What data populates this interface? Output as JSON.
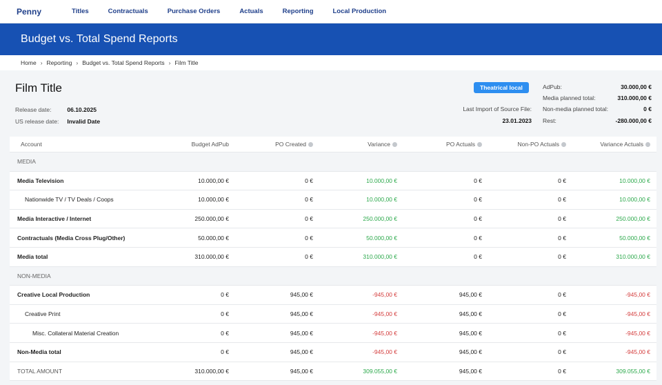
{
  "nav": {
    "brand": "Penny",
    "links": [
      "Titles",
      "Contractuals",
      "Purchase Orders",
      "Actuals",
      "Reporting",
      "Local Production"
    ]
  },
  "banner": {
    "title": "Budget vs. Total Spend Reports"
  },
  "breadcrumb": [
    "Home",
    "Reporting",
    "Budget vs. Total Spend Reports",
    "Film Title"
  ],
  "film": {
    "title": "Film Title",
    "release_label": "Release date:",
    "release_value": "06.10.2025",
    "us_release_label": "US release date:",
    "us_release_value": "Invalid Date",
    "badge": "Theatrical local",
    "last_import_label": "Last Import of Source File:",
    "last_import_value": "23.01.2023"
  },
  "summary": [
    {
      "label": "AdPub:",
      "value": "30.000,00 €"
    },
    {
      "label": "Media planned total:",
      "value": "310.000,00 €"
    },
    {
      "label": "Non-media planned total:",
      "value": "0 €"
    },
    {
      "label": "Rest:",
      "value": "-280.000,00 €"
    }
  ],
  "table": {
    "headers": [
      "Account",
      "Budget AdPub",
      "PO Created",
      "Variance",
      "PO Actuals",
      "Non-PO Actuals",
      "Variance Actuals"
    ],
    "rows": [
      {
        "kind": "section",
        "account": "MEDIA"
      },
      {
        "kind": "data",
        "bold": true,
        "indent": 0,
        "cells": [
          "Media Television",
          "10.000,00 €",
          "0 €",
          "10.000,00 €",
          "0 €",
          "0 €",
          "10.000,00 €"
        ],
        "var": "pos"
      },
      {
        "kind": "data",
        "bold": false,
        "indent": 1,
        "cells": [
          "Nationwide TV / TV Deals / Coops",
          "10.000,00 €",
          "0 €",
          "10.000,00 €",
          "0 €",
          "0 €",
          "10.000,00 €"
        ],
        "var": "pos"
      },
      {
        "kind": "data",
        "bold": true,
        "indent": 0,
        "cells": [
          "Media Interactive / Internet",
          "250.000,00 €",
          "0 €",
          "250.000,00 €",
          "0 €",
          "0 €",
          "250.000,00 €"
        ],
        "var": "pos"
      },
      {
        "kind": "data",
        "bold": true,
        "indent": 0,
        "cells": [
          "Contractuals (Media Cross Plug/Other)",
          "50.000,00 €",
          "0 €",
          "50.000,00 €",
          "0 €",
          "0 €",
          "50.000,00 €"
        ],
        "var": "pos"
      },
      {
        "kind": "data",
        "bold": true,
        "indent": 0,
        "cells": [
          "Media total",
          "310.000,00 €",
          "0 €",
          "310.000,00 €",
          "0 €",
          "0 €",
          "310.000,00 €"
        ],
        "var": "pos"
      },
      {
        "kind": "section",
        "account": "NON-MEDIA"
      },
      {
        "kind": "data",
        "bold": true,
        "indent": 0,
        "cells": [
          "Creative Local Production",
          "0 €",
          "945,00 €",
          "-945,00 €",
          "945,00 €",
          "0 €",
          "-945,00 €"
        ],
        "var": "neg"
      },
      {
        "kind": "data",
        "bold": false,
        "indent": 1,
        "cells": [
          "Creative Print",
          "0 €",
          "945,00 €",
          "-945,00 €",
          "945,00 €",
          "0 €",
          "-945,00 €"
        ],
        "var": "neg"
      },
      {
        "kind": "data",
        "bold": false,
        "indent": 2,
        "cells": [
          "Misc. Collateral Material Creation",
          "0 €",
          "945,00 €",
          "-945,00 €",
          "945,00 €",
          "0 €",
          "-945,00 €"
        ],
        "var": "neg"
      },
      {
        "kind": "data",
        "bold": true,
        "indent": 0,
        "cells": [
          "Non-Media total",
          "0 €",
          "945,00 €",
          "-945,00 €",
          "945,00 €",
          "0 €",
          "-945,00 €"
        ],
        "var": "neg"
      },
      {
        "kind": "grand",
        "bold": false,
        "indent": 0,
        "cells": [
          "TOTAL AMOUNT",
          "310.000,00 €",
          "945,00 €",
          "309.055,00 €",
          "945,00 €",
          "0 €",
          "309.055,00 €"
        ],
        "var": "pos"
      }
    ]
  }
}
